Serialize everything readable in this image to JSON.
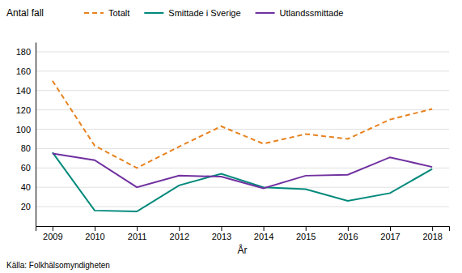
{
  "chart_data": {
    "type": "line",
    "ylabel": "Antal fall",
    "xlabel": "År",
    "annotations": [
      "Källa: Folkhälsomyndigheten"
    ],
    "x": [
      2009,
      2010,
      2011,
      2012,
      2013,
      2014,
      2015,
      2016,
      2017,
      2018
    ],
    "series": [
      {
        "name": "Totalt",
        "color": "#E8821E",
        "line_style": "dashed",
        "values": [
          150,
          83,
          60,
          82,
          103,
          85,
          95,
          90,
          110,
          121
        ]
      },
      {
        "name": "Smittade i Sverige",
        "color": "#00897B",
        "line_style": "solid",
        "values": [
          76,
          16,
          15,
          42,
          54,
          40,
          38,
          26,
          34,
          59
        ]
      },
      {
        "name": "Utlandssmittade",
        "color": "#7030A0",
        "line_style": "solid",
        "values": [
          75,
          68,
          40,
          52,
          51,
          39,
          52,
          53,
          71,
          61
        ]
      }
    ],
    "xlim": [
      2008.6,
      2018.4
    ],
    "xticks": [
      2009,
      2010,
      2011,
      2012,
      2013,
      2014,
      2015,
      2016,
      2017,
      2018
    ],
    "ylim": [
      0,
      190
    ],
    "yticks": [
      20,
      40,
      60,
      80,
      100,
      120,
      140,
      160,
      180
    ],
    "grid": true,
    "legend": "top"
  }
}
